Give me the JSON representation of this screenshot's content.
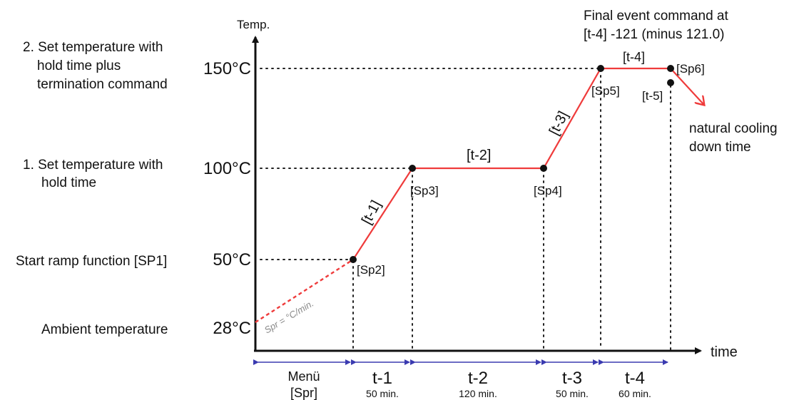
{
  "axes": {
    "y_label": "Temp.",
    "x_label": "time"
  },
  "temperatures": [
    {
      "value": "150°C",
      "note": "2. Set temperature with hold time plus termination command"
    },
    {
      "value": "100°C",
      "note": "1. Set temperature with hold time"
    },
    {
      "value": "50°C",
      "note": "Start ramp function [SP1]"
    },
    {
      "value": "28°C",
      "note": "Ambient temperature"
    }
  ],
  "left_notes": {
    "set_temp_2_line1": "2. Set temperature with",
    "set_temp_2_line2": "hold time plus",
    "set_temp_2_line3": "termination command",
    "set_temp_1_line1": "1. Set temperature with",
    "set_temp_1_line2": "hold time",
    "start_ramp": "Start ramp function [SP1]",
    "ambient": "Ambient temperature"
  },
  "setpoints": {
    "sp2": "[Sp2]",
    "sp3": "[Sp3]",
    "sp4": "[Sp4]",
    "sp5": "[Sp5]",
    "sp6": "[Sp6]",
    "t5": "[t-5]"
  },
  "segment_tags": {
    "t1": "[t-1]",
    "t2": "[t-2]",
    "t3": "[t-3]",
    "t4": "[t-4]"
  },
  "ramp_rate": "Spr = °C/min.",
  "final_event": {
    "line1": "Final event command at",
    "line2": "[t-4] -121 (minus 121.0)"
  },
  "cooling": {
    "line1": "natural cooling",
    "line2": "down time"
  },
  "timeline": [
    {
      "label": "Menü",
      "sub": "[Spr]"
    },
    {
      "label": "t-1",
      "sub": "50 min."
    },
    {
      "label": "t-2",
      "sub": "120 min."
    },
    {
      "label": "t-3",
      "sub": "50 min."
    },
    {
      "label": "t-4",
      "sub": "60 min."
    }
  ],
  "colors": {
    "profile": "#ef3b3b",
    "dimension": "#3a3ab0",
    "axis": "#111111"
  }
}
